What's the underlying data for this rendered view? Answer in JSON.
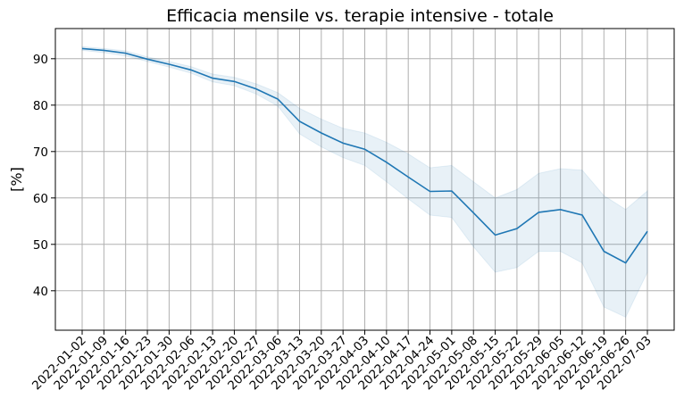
{
  "chart_data": {
    "type": "line",
    "title": "Efficacia mensile vs. terapie intensive - totale",
    "xlabel": "",
    "ylabel": "[%]",
    "x": [
      "2022-01-02",
      "2022-01-09",
      "2022-01-16",
      "2022-01-23",
      "2022-01-30",
      "2022-02-06",
      "2022-02-13",
      "2022-02-20",
      "2022-02-27",
      "2022-03-06",
      "2022-03-13",
      "2022-03-20",
      "2022-03-27",
      "2022-04-03",
      "2022-04-10",
      "2022-04-17",
      "2022-04-24",
      "2022-05-01",
      "2022-05-08",
      "2022-05-15",
      "2022-05-22",
      "2022-05-29",
      "2022-06-05",
      "2022-06-12",
      "2022-06-19",
      "2022-06-26",
      "2022-07-03"
    ],
    "ylim": [
      31.5,
      96.5
    ],
    "yticks": [
      40,
      50,
      60,
      70,
      80,
      90
    ],
    "grid": true,
    "series": [
      {
        "values": [
          92.2,
          91.8,
          91.2,
          89.9,
          88.8,
          87.6,
          85.8,
          85.1,
          83.5,
          81.3,
          76.5,
          74.0,
          71.8,
          70.5,
          67.7,
          64.5,
          61.4,
          61.5,
          56.8,
          52.0,
          53.4,
          56.9,
          57.5,
          56.3,
          48.5,
          46.0,
          52.8
        ],
        "lower": [
          91.8,
          91.3,
          90.6,
          89.4,
          88.2,
          86.9,
          85.0,
          84.2,
          82.4,
          79.8,
          73.8,
          71.0,
          68.7,
          67.0,
          63.5,
          59.8,
          56.3,
          55.8,
          49.5,
          44.0,
          45.0,
          48.5,
          48.5,
          46.0,
          36.5,
          34.3,
          44.0
        ],
        "upper": [
          92.6,
          92.2,
          91.7,
          90.4,
          89.4,
          88.3,
          86.7,
          86.0,
          84.6,
          82.7,
          79.3,
          77.0,
          75.0,
          74.0,
          72.0,
          69.5,
          66.5,
          67.0,
          63.5,
          60.0,
          61.8,
          65.3,
          66.3,
          66.0,
          60.5,
          57.5,
          61.5
        ],
        "color": "#1f77b4",
        "band_color": "#1f77b4"
      }
    ]
  }
}
